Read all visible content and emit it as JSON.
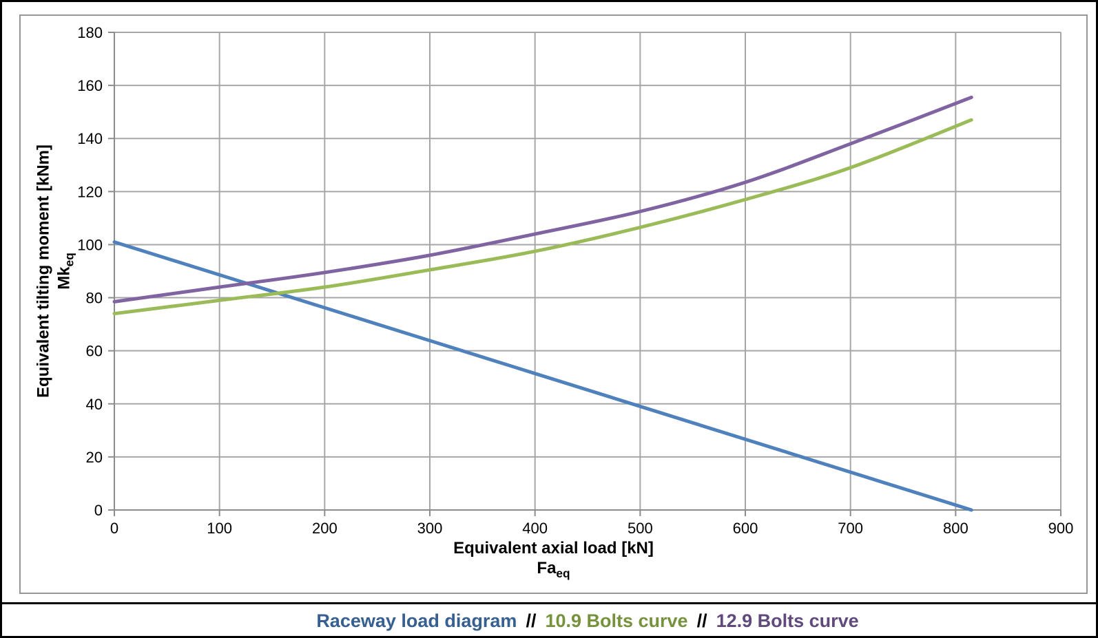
{
  "chart_data": {
    "type": "line",
    "title": "",
    "grid": true,
    "x_axis": {
      "label": "Equivalent axial load [kN]",
      "symbol": "Fa",
      "symbol_sub": "eq",
      "min": 0,
      "max": 900,
      "step": 100
    },
    "y_axis": {
      "label": "Equivalent tilting moment [kNm]",
      "symbol": "Mk",
      "symbol_sub": "eq",
      "min": 0,
      "max": 180,
      "step": 20
    },
    "series": [
      {
        "name": "Raceway load diagram",
        "color": "#4F81BD",
        "points": [
          [
            0,
            101
          ],
          [
            815,
            0
          ]
        ]
      },
      {
        "name": "10.9 Bolts curve",
        "color": "#9BBB59",
        "points": [
          [
            0,
            74
          ],
          [
            100,
            79
          ],
          [
            200,
            84
          ],
          [
            300,
            90.5
          ],
          [
            400,
            97.5
          ],
          [
            500,
            106.5
          ],
          [
            600,
            117
          ],
          [
            700,
            129
          ],
          [
            815,
            147
          ]
        ]
      },
      {
        "name": "12.9 Bolts curve",
        "color": "#8064A2",
        "points": [
          [
            0,
            78.5
          ],
          [
            100,
            84
          ],
          [
            200,
            89.5
          ],
          [
            300,
            96
          ],
          [
            400,
            104
          ],
          [
            500,
            112.5
          ],
          [
            600,
            123.5
          ],
          [
            700,
            138
          ],
          [
            815,
            155.5
          ]
        ]
      }
    ],
    "legend": {
      "position": "bottom",
      "separator": "//",
      "items": [
        {
          "label": "Raceway load diagram",
          "color": "#376091"
        },
        {
          "label": "10.9 Bolts curve",
          "color": "#76923C"
        },
        {
          "label": "12.9 Bolts curve",
          "color": "#604A7B"
        }
      ]
    },
    "style": {
      "gridline_color": "#A6A6A6",
      "axis_color": "#8C8C8C",
      "tick_label_color": "#000000",
      "tick_label_size": 22,
      "line_width": 5
    }
  }
}
